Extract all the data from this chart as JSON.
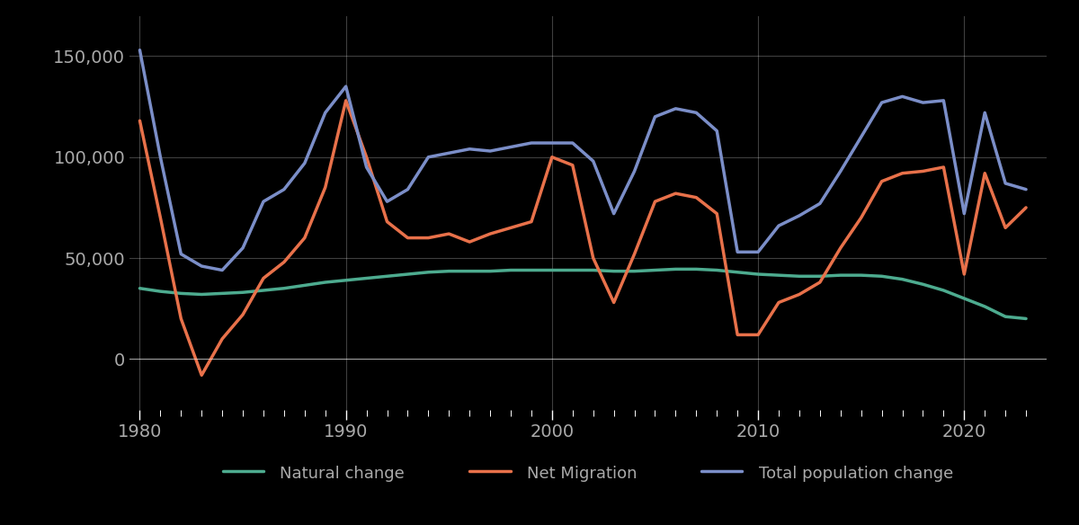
{
  "years": [
    1980,
    1981,
    1982,
    1983,
    1984,
    1985,
    1986,
    1987,
    1988,
    1989,
    1990,
    1991,
    1992,
    1993,
    1994,
    1995,
    1996,
    1997,
    1998,
    1999,
    2000,
    2001,
    2002,
    2003,
    2004,
    2005,
    2006,
    2007,
    2008,
    2009,
    2010,
    2011,
    2012,
    2013,
    2014,
    2015,
    2016,
    2017,
    2018,
    2019,
    2020,
    2021,
    2022,
    2023
  ],
  "natural_change": [
    35000,
    33500,
    32500,
    32000,
    32500,
    33000,
    34000,
    35000,
    36500,
    38000,
    39000,
    40000,
    41000,
    42000,
    43000,
    43500,
    43500,
    43500,
    44000,
    44000,
    44000,
    44000,
    44000,
    43500,
    43500,
    44000,
    44500,
    44500,
    44000,
    43000,
    42000,
    41500,
    41000,
    41000,
    41500,
    41500,
    41000,
    39500,
    37000,
    34000,
    30000,
    26000,
    21000,
    20000
  ],
  "net_migration": [
    118000,
    70000,
    20000,
    -8000,
    10000,
    22000,
    40000,
    48000,
    60000,
    85000,
    128000,
    100000,
    68000,
    60000,
    60000,
    62000,
    58000,
    62000,
    65000,
    68000,
    100000,
    96000,
    50000,
    28000,
    52000,
    78000,
    82000,
    80000,
    72000,
    12000,
    12000,
    28000,
    32000,
    38000,
    55000,
    70000,
    88000,
    92000,
    93000,
    95000,
    42000,
    92000,
    65000,
    75000
  ],
  "total_change": [
    153000,
    100000,
    52000,
    46000,
    44000,
    55000,
    78000,
    84000,
    97000,
    122000,
    135000,
    95000,
    78000,
    84000,
    100000,
    102000,
    104000,
    103000,
    105000,
    107000,
    107000,
    107000,
    98000,
    72000,
    93000,
    120000,
    124000,
    122000,
    113000,
    53000,
    53000,
    66000,
    71000,
    77000,
    93000,
    110000,
    127000,
    130000,
    127000,
    128000,
    72000,
    122000,
    87000,
    84000
  ],
  "natural_change_color": "#4dab8f",
  "net_migration_color": "#e8714a",
  "total_change_color": "#7b8ec8",
  "background_color": "#000000",
  "text_color": "#aaaaaa",
  "grid_color": "#ffffff",
  "grid_alpha": 0.25,
  "line_width": 2.5,
  "natural_change_label": "Natural change",
  "net_migration_label": "Net Migration",
  "total_change_label": "Total population change",
  "ylim": [
    -25000,
    170000
  ],
  "yticks": [
    0,
    50000,
    100000,
    150000
  ],
  "xticks": [
    1980,
    1990,
    2000,
    2010,
    2020
  ],
  "xtick_labels": [
    "1980",
    "1990",
    "2000",
    "2010",
    "2020"
  ],
  "minor_xticks": [
    1981,
    1982,
    1983,
    1984,
    1985,
    1986,
    1987,
    1988,
    1989,
    1991,
    1992,
    1993,
    1994,
    1995,
    1996,
    1997,
    1998,
    1999,
    2001,
    2002,
    2003,
    2004,
    2005,
    2006,
    2007,
    2008,
    2009,
    2011,
    2012,
    2013,
    2014,
    2015,
    2016,
    2017,
    2018,
    2019,
    2021,
    2022,
    2023
  ]
}
